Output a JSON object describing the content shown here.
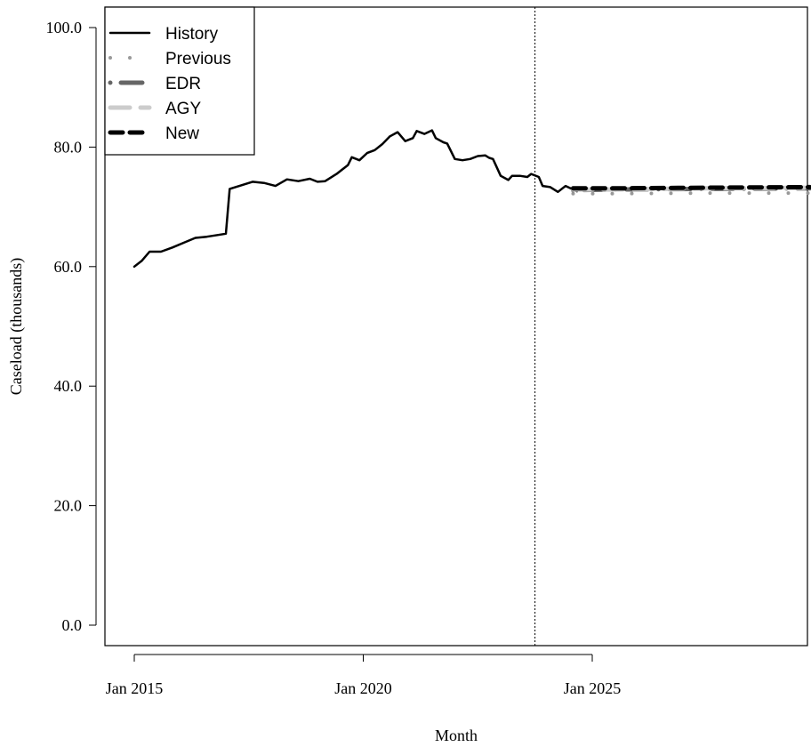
{
  "chart_data": {
    "type": "line",
    "xlabel": "Month",
    "ylabel": "Caseload (thousands)",
    "ylim": [
      0,
      100
    ],
    "y_ticks": [
      "0.0",
      "20.0",
      "40.0",
      "60.0",
      "80.0",
      "100.0"
    ],
    "x_ticks": [
      "Jan 2015",
      "Jan 2020",
      "Jan 2025"
    ],
    "x_range": [
      "2014-07",
      "2029-12"
    ],
    "forecast_start": "2023-10",
    "legend": {
      "position": "top-left",
      "entries": [
        "History",
        "Previous",
        "EDR",
        "AGY",
        "New"
      ]
    },
    "series": [
      {
        "name": "History",
        "style": "solid",
        "color": "#000000",
        "points": [
          [
            "2015-01",
            60.0
          ],
          [
            "2015-03",
            61.0
          ],
          [
            "2015-05",
            62.5
          ],
          [
            "2015-08",
            62.5
          ],
          [
            "2015-11",
            63.2
          ],
          [
            "2016-02",
            64.0
          ],
          [
            "2016-05",
            64.8
          ],
          [
            "2016-08",
            65.0
          ],
          [
            "2016-11",
            65.3
          ],
          [
            "2017-01",
            65.5
          ],
          [
            "2017-02",
            73.0
          ],
          [
            "2017-05",
            73.6
          ],
          [
            "2017-08",
            74.2
          ],
          [
            "2017-11",
            74.0
          ],
          [
            "2018-02",
            73.5
          ],
          [
            "2018-05",
            74.6
          ],
          [
            "2018-08",
            74.3
          ],
          [
            "2018-11",
            74.7
          ],
          [
            "2019-01",
            74.2
          ],
          [
            "2019-03",
            74.3
          ],
          [
            "2019-06",
            75.5
          ],
          [
            "2019-09",
            77.0
          ],
          [
            "2019-10",
            78.3
          ],
          [
            "2019-12",
            77.8
          ],
          [
            "2020-02",
            79.0
          ],
          [
            "2020-04",
            79.5
          ],
          [
            "2020-06",
            80.5
          ],
          [
            "2020-08",
            81.8
          ],
          [
            "2020-10",
            82.5
          ],
          [
            "2020-12",
            81.0
          ],
          [
            "2021-02",
            81.5
          ],
          [
            "2021-03",
            82.7
          ],
          [
            "2021-05",
            82.2
          ],
          [
            "2021-07",
            82.8
          ],
          [
            "2021-08",
            81.5
          ],
          [
            "2021-10",
            80.8
          ],
          [
            "2021-11",
            80.6
          ],
          [
            "2022-01",
            78.0
          ],
          [
            "2022-03",
            77.8
          ],
          [
            "2022-05",
            78.0
          ],
          [
            "2022-07",
            78.5
          ],
          [
            "2022-09",
            78.6
          ],
          [
            "2022-10",
            78.2
          ],
          [
            "2022-11",
            78.0
          ],
          [
            "2023-01",
            75.2
          ],
          [
            "2023-03",
            74.5
          ],
          [
            "2023-04",
            75.2
          ],
          [
            "2023-06",
            75.2
          ],
          [
            "2023-08",
            75.0
          ],
          [
            "2023-09",
            75.5
          ],
          [
            "2023-11",
            75.0
          ],
          [
            "2023-12",
            73.5
          ],
          [
            "2024-02",
            73.3
          ],
          [
            "2024-04",
            72.5
          ],
          [
            "2024-06",
            73.5
          ],
          [
            "2024-07",
            73.2
          ],
          [
            "2024-09",
            72.6
          ]
        ]
      },
      {
        "name": "Previous",
        "style": "dotted",
        "color": "#999999",
        "points": [
          [
            "2024-08",
            72.2
          ],
          [
            "2025-06",
            72.2
          ],
          [
            "2027-06",
            72.3
          ],
          [
            "2029-10",
            72.3
          ]
        ]
      },
      {
        "name": "EDR",
        "style": "dotdash",
        "color": "#666666",
        "points": [
          [
            "2024-08",
            72.8
          ],
          [
            "2025-06",
            72.9
          ],
          [
            "2027-06",
            73.0
          ],
          [
            "2029-10",
            73.1
          ]
        ]
      },
      {
        "name": "AGY",
        "style": "longdash",
        "color": "#cccccc",
        "points": [
          [
            "2024-08",
            72.9
          ],
          [
            "2025-06",
            72.9
          ],
          [
            "2027-06",
            73.1
          ],
          [
            "2029-10",
            73.2
          ]
        ]
      },
      {
        "name": "New",
        "style": "dashed",
        "color": "#000000",
        "points": [
          [
            "2024-08",
            73.1
          ],
          [
            "2025-06",
            73.1
          ],
          [
            "2027-06",
            73.2
          ],
          [
            "2029-10",
            73.3
          ]
        ]
      }
    ]
  }
}
